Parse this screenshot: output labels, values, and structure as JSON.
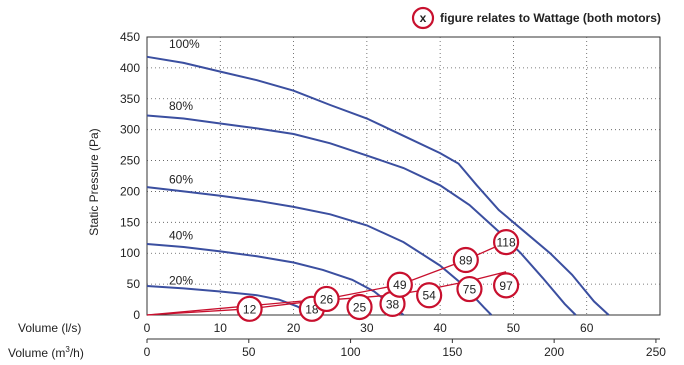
{
  "chart_data": {
    "type": "line",
    "ylabel": "Static Pressure (Pa)",
    "ylim": [
      0,
      450
    ],
    "yticks": [
      0,
      50,
      100,
      150,
      200,
      250,
      300,
      350,
      400,
      450
    ],
    "x_axis": {
      "label": "Volume (l/s)",
      "range": [
        0,
        70
      ],
      "ticks": [
        0,
        10,
        20,
        30,
        40,
        50,
        60
      ]
    },
    "x_axis_secondary": {
      "label_main": "Volume (m",
      "label_sup": "3",
      "label_end": "/h)",
      "range": [
        0,
        252
      ],
      "ticks": [
        0,
        50,
        100,
        150,
        200,
        250
      ]
    },
    "grid": true,
    "colors": {
      "curve": "#3b4fa0",
      "wattage": "#c8102e",
      "grid": "#555555"
    },
    "legend": {
      "marker": "x",
      "text": "figure relates to Wattage (both motors)",
      "placement": "top-right"
    },
    "series": [
      {
        "name": "100%",
        "label_at": [
          3,
          432
        ],
        "points": [
          [
            0,
            418
          ],
          [
            5,
            408
          ],
          [
            10,
            394
          ],
          [
            15,
            380
          ],
          [
            20,
            363
          ],
          [
            25,
            340
          ],
          [
            30,
            318
          ],
          [
            35,
            290
          ],
          [
            40,
            262
          ],
          [
            42.5,
            245
          ],
          [
            45,
            210
          ],
          [
            48,
            170
          ],
          [
            52,
            130
          ],
          [
            55,
            100
          ],
          [
            58,
            65
          ],
          [
            61,
            22
          ],
          [
            63,
            0
          ]
        ]
      },
      {
        "name": "80%",
        "label_at": [
          3,
          332
        ],
        "points": [
          [
            0,
            323
          ],
          [
            5,
            318
          ],
          [
            10,
            310
          ],
          [
            15,
            302
          ],
          [
            20,
            293
          ],
          [
            25,
            278
          ],
          [
            30,
            258
          ],
          [
            35,
            238
          ],
          [
            40,
            210
          ],
          [
            44,
            178
          ],
          [
            48,
            135
          ],
          [
            51,
            100
          ],
          [
            54,
            60
          ],
          [
            57,
            18
          ],
          [
            58.5,
            0
          ]
        ]
      },
      {
        "name": "60%",
        "label_at": [
          3,
          213
        ],
        "points": [
          [
            0,
            207
          ],
          [
            5,
            200
          ],
          [
            10,
            193
          ],
          [
            15,
            185
          ],
          [
            20,
            175
          ],
          [
            25,
            163
          ],
          [
            30,
            145
          ],
          [
            35,
            118
          ],
          [
            40,
            80
          ],
          [
            43,
            50
          ],
          [
            46,
            12
          ],
          [
            47,
            0
          ]
        ]
      },
      {
        "name": "40%",
        "label_at": [
          3,
          122
        ],
        "points": [
          [
            0,
            115
          ],
          [
            5,
            110
          ],
          [
            10,
            103
          ],
          [
            15,
            95
          ],
          [
            20,
            85
          ],
          [
            24,
            73
          ],
          [
            28,
            57
          ],
          [
            31,
            38
          ],
          [
            34,
            10
          ],
          [
            35,
            0
          ]
        ]
      },
      {
        "name": "20%",
        "label_at": [
          3,
          49
        ],
        "points": [
          [
            0,
            47
          ],
          [
            5,
            43
          ],
          [
            10,
            38
          ],
          [
            15,
            32
          ],
          [
            18,
            25
          ],
          [
            20.5,
            14
          ],
          [
            22,
            4
          ],
          [
            23,
            0
          ]
        ]
      }
    ],
    "wattage_lines": [
      [
        [
          0,
          0
        ],
        [
          24.5,
          26
        ],
        [
          34.5,
          49
        ],
        [
          43.5,
          89
        ],
        [
          49,
          118
        ]
      ],
      [
        [
          0,
          0
        ],
        [
          14,
          10
        ],
        [
          23,
          23
        ],
        [
          29,
          28
        ],
        [
          34,
          33
        ],
        [
          38.5,
          42
        ],
        [
          44,
          55
        ],
        [
          49,
          70
        ]
      ]
    ],
    "wattage_labels": [
      {
        "value": "12",
        "x": 14,
        "y": 10
      },
      {
        "value": "18",
        "x": 22.5,
        "y": 10
      },
      {
        "value": "25",
        "x": 29,
        "y": 13
      },
      {
        "value": "26",
        "x": 24.5,
        "y": 26
      },
      {
        "value": "38",
        "x": 33.5,
        "y": 18
      },
      {
        "value": "54",
        "x": 38.5,
        "y": 32
      },
      {
        "value": "49",
        "x": 34.5,
        "y": 49
      },
      {
        "value": "75",
        "x": 44,
        "y": 42
      },
      {
        "value": "97",
        "x": 49,
        "y": 48
      },
      {
        "value": "89",
        "x": 43.5,
        "y": 89
      },
      {
        "value": "118",
        "x": 49,
        "y": 118
      }
    ]
  }
}
